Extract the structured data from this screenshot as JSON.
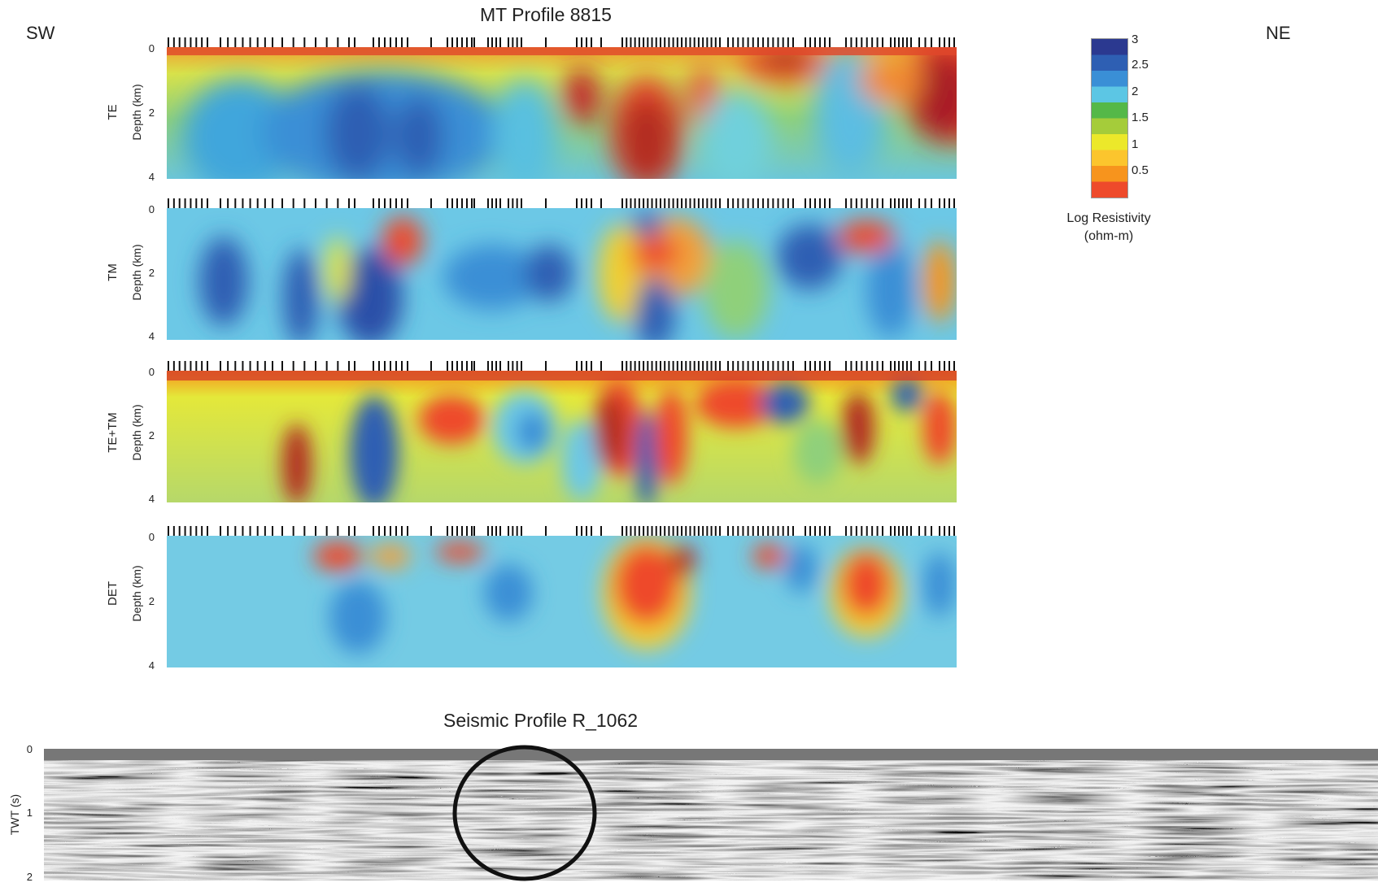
{
  "header": {
    "mt_title": "MT Profile 8815",
    "left_dir": "SW",
    "right_dir": "NE"
  },
  "mt_panels": [
    {
      "name": "TE",
      "ylabel": "Depth (km)",
      "yticks": [
        "0",
        "2",
        "4"
      ]
    },
    {
      "name": "TM",
      "ylabel": "Depth (km)",
      "yticks": [
        "0",
        "2",
        "4"
      ]
    },
    {
      "name": "TE+TM",
      "ylabel": "Depth (km)",
      "yticks": [
        "0",
        "2",
        "4"
      ]
    },
    {
      "name": "DET",
      "ylabel": "Depth (km)",
      "yticks": [
        "0",
        "2",
        "4"
      ]
    }
  ],
  "colorbar": {
    "ticks": [
      "3",
      "2.5",
      "2",
      "1.5",
      "1",
      "0.5"
    ],
    "label_line1": "Log Resistivity",
    "label_line2": "(ohm-m)",
    "colors": [
      "#2b3990",
      "#2e5fb3",
      "#3a8fd6",
      "#5cc6e4",
      "#55b848",
      "#a5cc3a",
      "#ece82a",
      "#fcc52d",
      "#f7941d",
      "#ee4a2b"
    ]
  },
  "seismic": {
    "title": "Seismic Profile R_1062",
    "ylabel": "TWT (s)",
    "yticks": [
      "0",
      "1",
      "2"
    ]
  }
}
